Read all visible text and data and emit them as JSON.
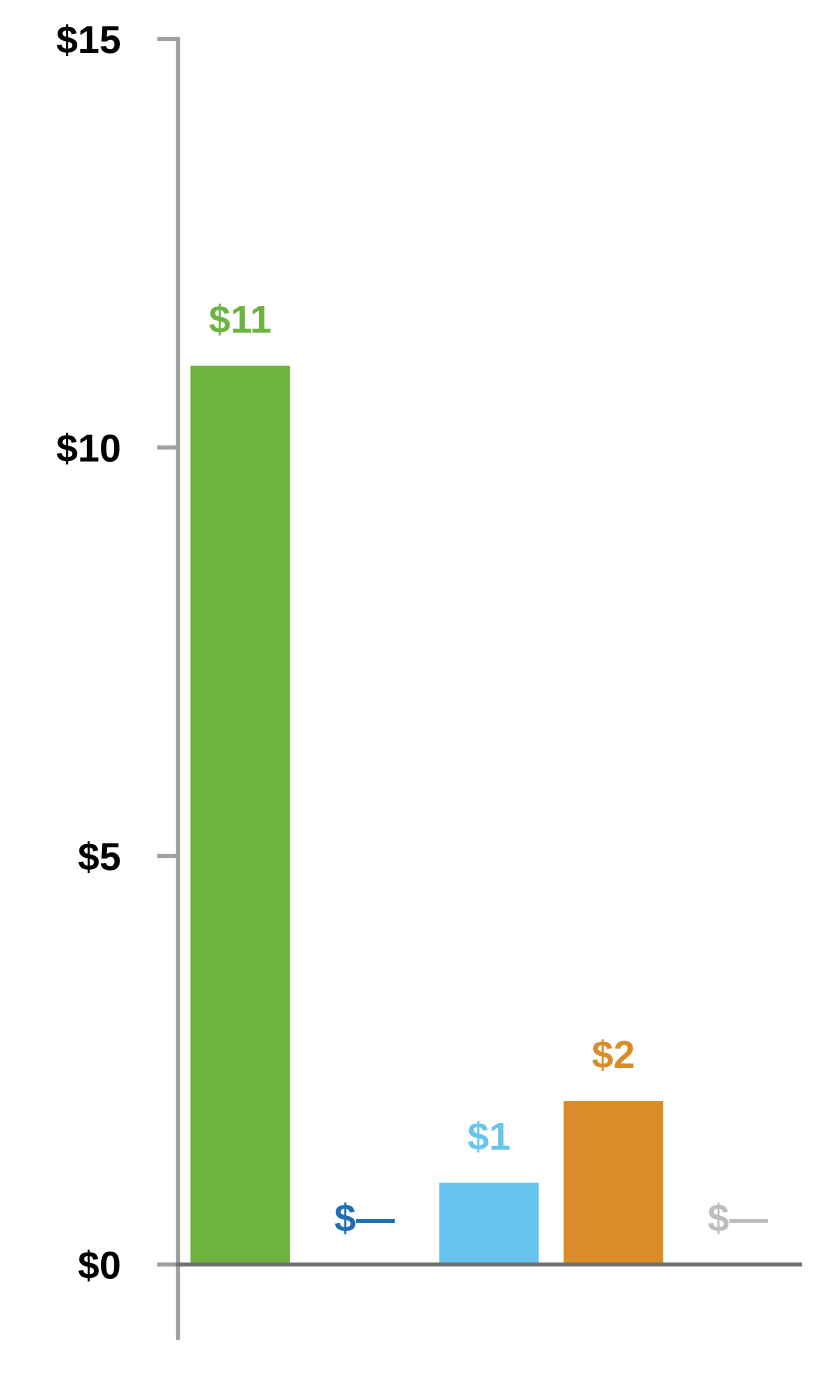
{
  "chart_data": {
    "type": "bar",
    "categories": [
      null,
      null,
      null,
      null,
      null
    ],
    "values": [
      11,
      0,
      1,
      2,
      0
    ],
    "colors": [
      "#6db33f",
      "#1f6db5",
      "#66c4ef",
      "#d98c27",
      "#bdbdbd"
    ],
    "value_labels": [
      "$11",
      "$—",
      "$1",
      "$2",
      "$—"
    ],
    "ylim": [
      -0.9,
      15
    ],
    "yticks": [
      {
        "value": 0,
        "label": "$0"
      },
      {
        "value": 5,
        "label": "$5"
      },
      {
        "value": 10,
        "label": "$10"
      },
      {
        "value": 15,
        "label": "$15"
      }
    ],
    "tick_labels": "y"
  }
}
